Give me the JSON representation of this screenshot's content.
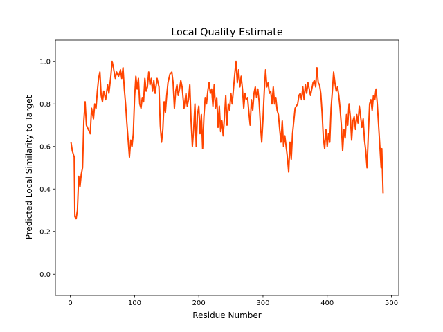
{
  "chart_data": {
    "type": "line",
    "title": "Local Quality Estimate",
    "x_label": "Residue Number",
    "y_label": "Predicted Local Similarity to Target",
    "x": [
      1,
      3,
      6,
      7,
      9,
      11,
      13,
      15,
      17,
      19,
      21,
      23,
      25,
      28,
      31,
      33,
      36,
      38,
      40,
      42,
      44,
      46,
      48,
      50,
      52,
      55,
      58,
      60,
      63,
      65,
      67,
      70,
      72,
      75,
      78,
      80,
      82,
      84,
      86,
      88,
      90,
      92,
      94,
      96,
      98,
      100,
      102,
      104,
      106,
      108,
      110,
      112,
      114,
      116,
      118,
      120,
      122,
      124,
      126,
      128,
      130,
      132,
      135,
      138,
      140,
      142,
      144,
      146,
      148,
      150,
      152,
      155,
      158,
      160,
      162,
      164,
      166,
      168,
      170,
      172,
      174,
      177,
      180,
      182,
      184,
      186,
      188,
      190,
      192,
      194,
      196,
      198,
      200,
      202,
      204,
      206,
      208,
      210,
      212,
      214,
      216,
      218,
      220,
      222,
      224,
      226,
      228,
      230,
      232,
      234,
      236,
      238,
      240,
      242,
      244,
      246,
      248,
      250,
      252,
      254,
      256,
      258,
      260,
      262,
      264,
      266,
      268,
      270,
      272,
      274,
      276,
      278,
      280,
      282,
      284,
      286,
      288,
      290,
      292,
      294,
      296,
      298,
      300,
      302,
      304,
      306,
      308,
      310,
      312,
      314,
      316,
      318,
      320,
      322,
      324,
      326,
      328,
      330,
      332,
      334,
      336,
      338,
      340,
      342,
      344,
      346,
      348,
      350,
      352,
      354,
      356,
      358,
      360,
      362,
      364,
      366,
      368,
      370,
      372,
      374,
      376,
      378,
      380,
      382,
      384,
      386,
      388,
      390,
      392,
      394,
      396,
      398,
      400,
      402,
      404,
      406,
      408,
      410,
      412,
      414,
      416,
      418,
      420,
      422,
      424,
      426,
      428,
      430,
      432,
      434,
      436,
      438,
      440,
      442,
      444,
      446,
      448,
      450,
      452,
      454,
      456,
      458,
      460,
      462,
      464,
      466,
      468,
      470,
      472,
      474,
      476,
      478,
      480,
      482,
      484,
      485,
      487
    ],
    "series": [
      {
        "color": "#ff4500",
        "values": [
          0.62,
          0.58,
          0.55,
          0.27,
          0.26,
          0.3,
          0.46,
          0.41,
          0.47,
          0.5,
          0.72,
          0.81,
          0.7,
          0.68,
          0.66,
          0.78,
          0.73,
          0.8,
          0.78,
          0.86,
          0.92,
          0.95,
          0.84,
          0.81,
          0.86,
          0.82,
          0.89,
          0.85,
          0.93,
          1.0,
          0.97,
          0.92,
          0.95,
          0.93,
          0.96,
          0.92,
          0.97,
          0.87,
          0.8,
          0.71,
          0.63,
          0.55,
          0.63,
          0.6,
          0.66,
          0.83,
          0.93,
          0.87,
          0.92,
          0.8,
          0.78,
          0.83,
          0.81,
          0.92,
          0.86,
          0.88,
          0.95,
          0.89,
          0.92,
          0.86,
          0.91,
          0.85,
          0.92,
          0.88,
          0.7,
          0.62,
          0.68,
          0.81,
          0.76,
          0.84,
          0.9,
          0.94,
          0.95,
          0.9,
          0.78,
          0.86,
          0.89,
          0.84,
          0.87,
          0.91,
          0.88,
          0.78,
          0.85,
          0.79,
          0.82,
          0.89,
          0.72,
          0.6,
          0.68,
          0.8,
          0.6,
          0.75,
          0.79,
          0.66,
          0.75,
          0.59,
          0.74,
          0.83,
          0.8,
          0.86,
          0.9,
          0.85,
          0.87,
          0.79,
          0.89,
          0.78,
          0.83,
          0.69,
          0.79,
          0.67,
          0.72,
          0.65,
          0.74,
          0.84,
          0.7,
          0.8,
          0.77,
          0.85,
          0.8,
          0.87,
          0.94,
          1.0,
          0.9,
          0.96,
          0.88,
          0.93,
          0.87,
          0.78,
          0.85,
          0.82,
          0.83,
          0.76,
          0.7,
          0.82,
          0.77,
          0.85,
          0.88,
          0.83,
          0.87,
          0.81,
          0.7,
          0.62,
          0.73,
          0.86,
          0.96,
          0.88,
          0.9,
          0.85,
          0.86,
          0.8,
          0.88,
          0.8,
          0.83,
          0.77,
          0.75,
          0.68,
          0.62,
          0.72,
          0.6,
          0.65,
          0.6,
          0.55,
          0.48,
          0.62,
          0.54,
          0.66,
          0.72,
          0.78,
          0.79,
          0.8,
          0.84,
          0.85,
          0.82,
          0.88,
          0.82,
          0.89,
          0.85,
          0.9,
          0.87,
          0.84,
          0.87,
          0.9,
          0.91,
          0.88,
          0.97,
          0.9,
          0.89,
          0.85,
          0.76,
          0.64,
          0.59,
          0.68,
          0.6,
          0.66,
          0.62,
          0.78,
          0.86,
          0.95,
          0.9,
          0.86,
          0.88,
          0.84,
          0.78,
          0.7,
          0.58,
          0.68,
          0.64,
          0.75,
          0.7,
          0.8,
          0.74,
          0.63,
          0.72,
          0.74,
          0.68,
          0.75,
          0.71,
          0.79,
          0.74,
          0.69,
          0.73,
          0.63,
          0.58,
          0.5,
          0.66,
          0.8,
          0.82,
          0.77,
          0.84,
          0.82,
          0.87,
          0.8,
          0.7,
          0.6,
          0.5,
          0.59,
          0.38
        ]
      }
    ],
    "xlim": [
      -23.3,
      511.3
    ],
    "ylim": [
      -0.1,
      1.1
    ],
    "xticks": [
      0,
      100,
      200,
      300,
      400,
      500
    ],
    "yticks": [
      {
        "value": 0,
        "label": "0.0"
      },
      0.2,
      0.4,
      0.6,
      0.8,
      {
        "value": 1,
        "label": "1.0"
      }
    ]
  }
}
